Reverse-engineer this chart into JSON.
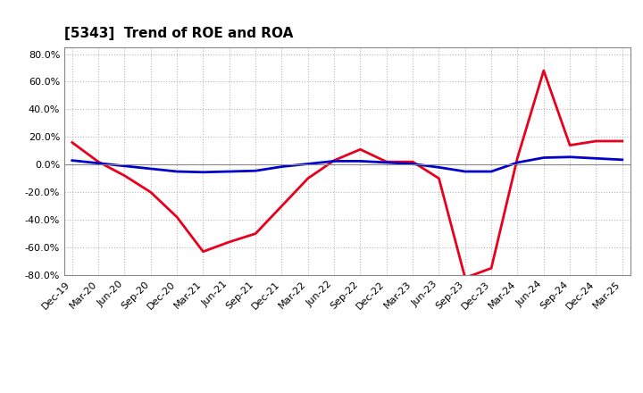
{
  "title": "[5343]  Trend of ROE and ROA",
  "x_labels": [
    "Dec-19",
    "Mar-20",
    "Jun-20",
    "Sep-20",
    "Dec-20",
    "Mar-21",
    "Jun-21",
    "Sep-21",
    "Dec-21",
    "Mar-22",
    "Jun-22",
    "Sep-22",
    "Dec-22",
    "Mar-23",
    "Jun-23",
    "Sep-23",
    "Dec-23",
    "Mar-24",
    "Jun-24",
    "Sep-24",
    "Dec-24",
    "Mar-25"
  ],
  "roe": [
    16.0,
    2.0,
    -8.0,
    -20.0,
    -38.0,
    -63.0,
    -56.0,
    -50.0,
    -30.0,
    -10.0,
    3.0,
    11.0,
    2.0,
    2.0,
    -10.0,
    -82.0,
    -75.0,
    5.0,
    68.0,
    14.0,
    17.0,
    17.0
  ],
  "roa": [
    3.0,
    1.0,
    -1.0,
    -3.0,
    -5.0,
    -5.5,
    -5.0,
    -4.5,
    -1.5,
    0.5,
    2.5,
    2.5,
    1.5,
    0.5,
    -2.0,
    -5.0,
    -5.0,
    1.5,
    5.0,
    5.5,
    4.5,
    3.5
  ],
  "roe_color": "#e8001c",
  "roa_color": "#0000cd",
  "ylim": [
    -80.0,
    80.0
  ],
  "yticks": [
    -80.0,
    -60.0,
    -40.0,
    -20.0,
    0.0,
    20.0,
    40.0,
    60.0,
    80.0
  ],
  "bg_color": "#ffffff",
  "grid_color": "#aaaaaa",
  "line_width": 2.0,
  "title_fontsize": 11,
  "tick_fontsize": 8,
  "legend_fontsize": 10
}
